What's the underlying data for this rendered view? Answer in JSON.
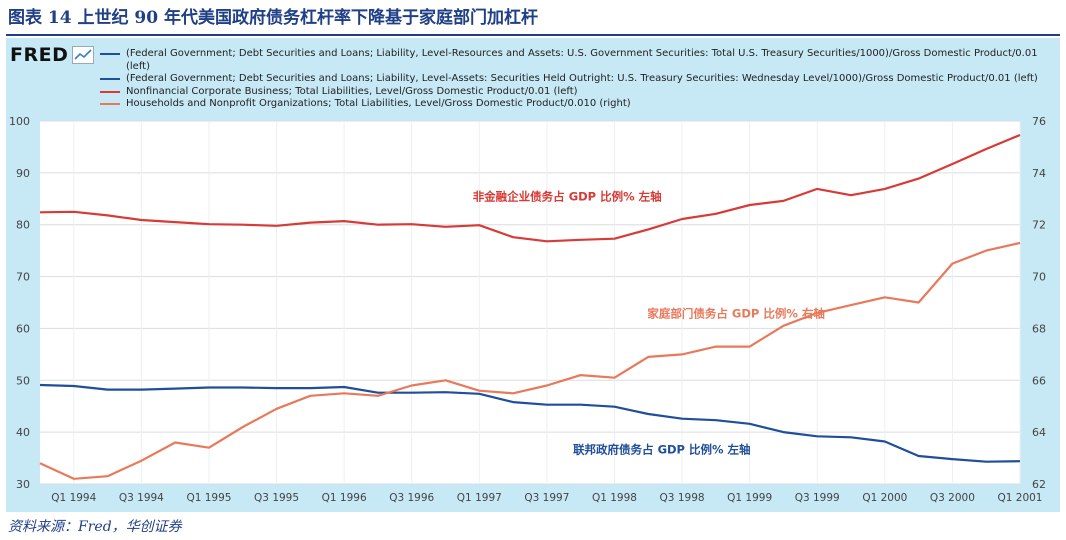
{
  "figure_title": "图表 14 上世纪 90 年代美国政府债务杠杆率下降基于家庭部门加杠杆",
  "logo_text": "FRED",
  "source_note": "资料来源：Fred，华创证券",
  "colors": {
    "federal": "#1f4e9a",
    "corporate": "#d83a35",
    "household": "#e8795a",
    "panel": "#c7e9f6",
    "title": "#1f3f87"
  },
  "chart_data": {
    "type": "line",
    "title": "",
    "legend_position": "top",
    "grid": true,
    "x_start": 1994.0,
    "x_end": 2001.0,
    "x_tick_labels": [
      "Q1 1994",
      "Q3 1994",
      "Q1 1995",
      "Q3 1995",
      "Q1 1996",
      "Q3 1996",
      "Q1 1997",
      "Q3 1997",
      "Q1 1998",
      "Q3 1998",
      "Q1 1999",
      "Q3 1999",
      "Q1 2000",
      "Q3 2000",
      "Q1 2001"
    ],
    "x_tick_values": [
      1994.0,
      1994.5,
      1995.0,
      1995.5,
      1996.0,
      1996.5,
      1997.0,
      1997.5,
      1998.0,
      1998.5,
      1999.0,
      1999.5,
      2000.0,
      2000.5,
      2001.0
    ],
    "y_left": {
      "min": 30,
      "max": 100,
      "ticks": [
        30,
        40,
        50,
        60,
        70,
        80,
        90,
        100
      ]
    },
    "y_right": {
      "min": 62,
      "max": 76,
      "ticks": [
        62,
        64,
        66,
        68,
        70,
        72,
        74,
        76
      ]
    },
    "x": [
      1993.75,
      1994.0,
      1994.25,
      1994.5,
      1994.75,
      1995.0,
      1995.25,
      1995.5,
      1995.75,
      1996.0,
      1996.25,
      1996.5,
      1996.75,
      1997.0,
      1997.25,
      1997.5,
      1997.75,
      1998.0,
      1998.25,
      1998.5,
      1998.75,
      1999.0,
      1999.25,
      1999.5,
      1999.75,
      2000.0,
      2000.25,
      2000.5,
      2000.75,
      2001.0
    ],
    "series": [
      {
        "name": "(Federal Government; Debt Securities and Loans; Liability, Level-Resources and Assets: U.S. Government Securities: Total U.S. Treasury Securities/1000)/Gross Domestic Product/0.01 (left)",
        "color_key": "federal",
        "axis": "left",
        "values": [
          null,
          null,
          null,
          null,
          null,
          null,
          null,
          null,
          null,
          null,
          null,
          null,
          null,
          null,
          null,
          null,
          null,
          null,
          null,
          null,
          null,
          null,
          null,
          null,
          null,
          null,
          null,
          null,
          null,
          null
        ]
      },
      {
        "name": "(Federal Government; Debt Securities and Loans; Liability, Level-Assets: Securities Held Outright: U.S. Treasury Securities: Wednesday Level/1000)/Gross Domestic Product/0.01 (left)",
        "color_key": "federal",
        "axis": "left",
        "values": [
          49.1,
          48.9,
          48.2,
          48.2,
          48.4,
          48.6,
          48.6,
          48.5,
          48.5,
          48.7,
          47.6,
          47.6,
          47.7,
          47.4,
          45.8,
          45.3,
          45.3,
          44.9,
          43.5,
          42.6,
          42.3,
          41.6,
          40.0,
          39.2,
          39.0,
          38.2,
          35.4,
          34.8,
          34.3,
          34.4
        ]
      },
      {
        "name": "Nonfinancial Corporate Business; Total Liabilities, Level/Gross Domestic Product/0.01 (left)",
        "color_key": "corporate",
        "axis": "left",
        "values": [
          82.4,
          82.5,
          81.8,
          80.9,
          80.5,
          80.1,
          80.0,
          79.8,
          80.4,
          80.7,
          80.0,
          80.1,
          79.6,
          79.9,
          77.6,
          76.8,
          77.1,
          77.3,
          79.1,
          81.1,
          82.1,
          83.8,
          84.6,
          86.9,
          85.7,
          86.9,
          88.9,
          91.7,
          94.6,
          97.3
        ]
      },
      {
        "name": "Households and Nonprofit Organizations; Total Liabilities, Level/Gross Domestic Product/0.010 (right)",
        "color_key": "household",
        "axis": "right",
        "values": [
          62.8,
          62.2,
          62.3,
          62.9,
          63.6,
          63.4,
          64.2,
          64.9,
          65.4,
          65.5,
          65.4,
          65.8,
          66.0,
          65.6,
          65.5,
          65.8,
          66.2,
          66.1,
          66.9,
          67.0,
          67.3,
          67.3,
          68.1,
          68.6,
          68.9,
          69.2,
          69.0,
          70.5,
          71.0,
          71.3
        ]
      }
    ],
    "annotations": [
      {
        "text": "非金融企业债务占 GDP 比例% 左轴",
        "color_key": "corporate",
        "x": 1997.65,
        "y_left": 84.7
      },
      {
        "text": "家庭部门债务占 GDP 比例% 右轴",
        "color_key": "household",
        "x": 1998.9,
        "y_left": 62.1
      },
      {
        "text": "联邦政府债务占 GDP 比例% 左轴",
        "color_key": "federal",
        "x": 1998.35,
        "y_left": 35.9
      }
    ]
  }
}
